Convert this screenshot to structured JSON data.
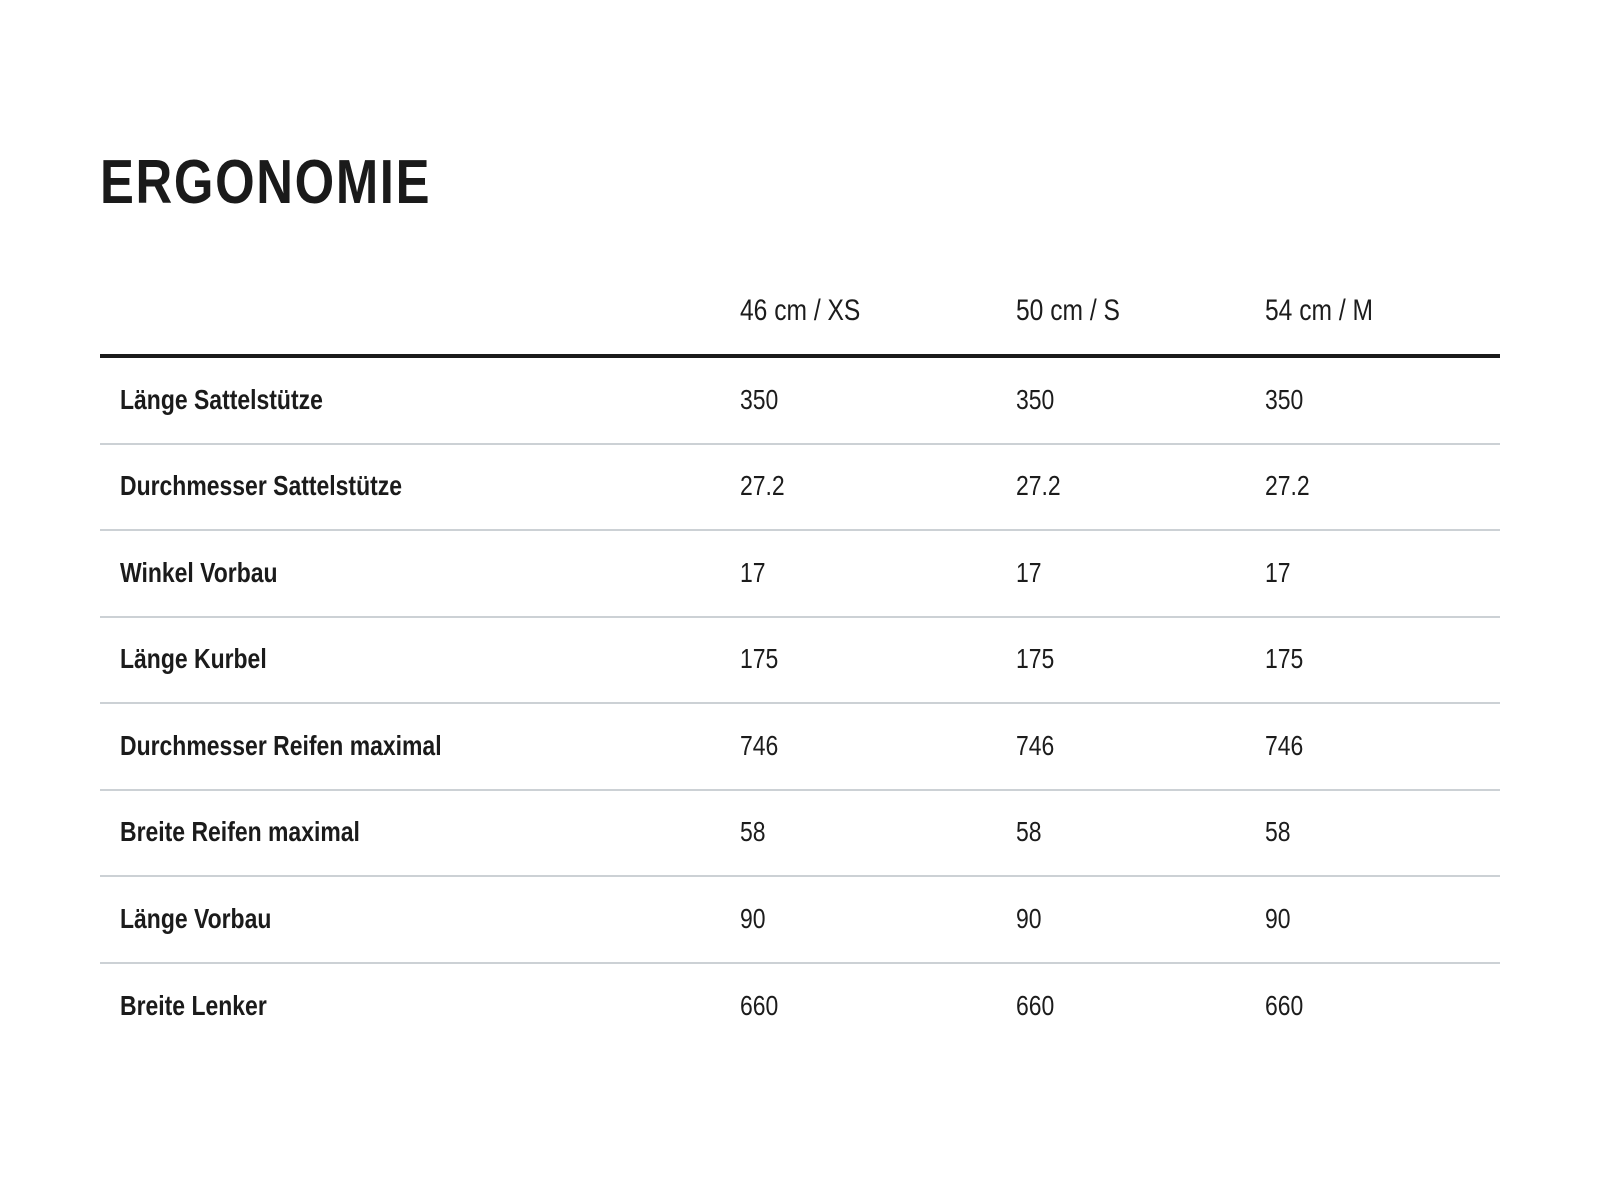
{
  "page": {
    "title": "ERGONOMIE"
  },
  "table": {
    "size_columns": [
      "46 cm / XS",
      "50 cm / S",
      "54 cm / M"
    ],
    "rows": [
      {
        "label": "Länge Sattelstütze",
        "values": [
          "350",
          "350",
          "350"
        ]
      },
      {
        "label": "Durchmesser Sattelstütze",
        "values": [
          "27.2",
          "27.2",
          "27.2"
        ]
      },
      {
        "label": "Winkel Vorbau",
        "values": [
          "17",
          "17",
          "17"
        ]
      },
      {
        "label": "Länge Kurbel",
        "values": [
          "175",
          "175",
          "175"
        ]
      },
      {
        "label": "Durchmesser Reifen maximal",
        "values": [
          "746",
          "746",
          "746"
        ]
      },
      {
        "label": "Breite Reifen maximal",
        "values": [
          "58",
          "58",
          "58"
        ]
      },
      {
        "label": "Länge Vorbau",
        "values": [
          "90",
          "90",
          "90"
        ]
      },
      {
        "label": "Breite Lenker",
        "values": [
          "660",
          "660",
          "660"
        ]
      }
    ]
  },
  "colors": {
    "background": "#ffffff",
    "text": "#1c1c1c",
    "header_rule": "#1a1a1a",
    "row_separator": "#ccd1d5"
  }
}
